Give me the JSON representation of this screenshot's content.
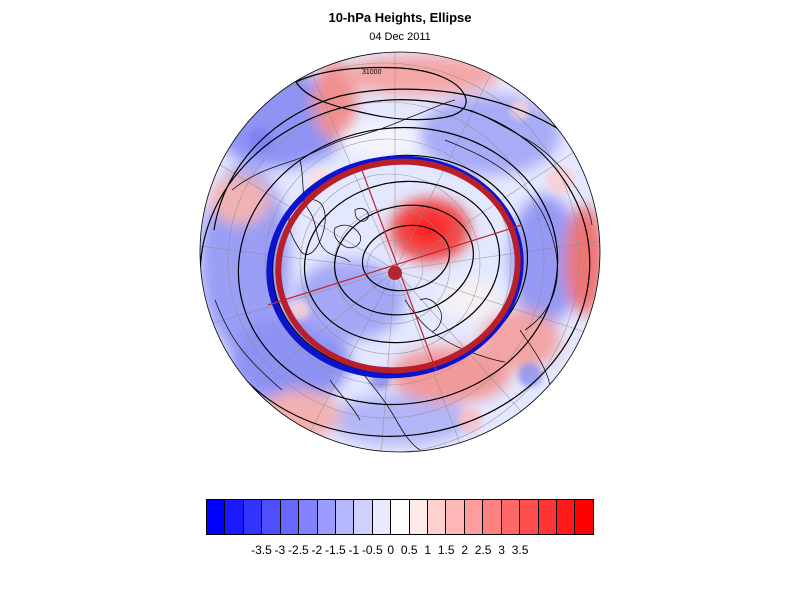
{
  "header": {
    "title": "10-hPa Heights, Ellipse",
    "date": "04 Dec 2011"
  },
  "map": {
    "projection": "north-polar-stereographic",
    "field": "height-anomaly",
    "contour_label": "31000",
    "ellipse": {
      "fit_color": "#b81f2a",
      "outer_color": "#0a13d0",
      "center_dot_color": "#b8242c"
    },
    "anomaly_regions": [
      {
        "sign": "positive",
        "strength": 3.2,
        "location": "north-central, near Siberia"
      },
      {
        "sign": "positive",
        "strength": 2.5,
        "location": "upper-left"
      },
      {
        "sign": "positive",
        "strength": 2.0,
        "location": "right edge"
      },
      {
        "sign": "positive",
        "strength": 1.8,
        "location": "lower-center"
      },
      {
        "sign": "negative",
        "strength": -2.5,
        "location": "left side"
      },
      {
        "sign": "negative",
        "strength": -2.0,
        "location": "lower-left"
      },
      {
        "sign": "negative",
        "strength": -1.8,
        "location": "top"
      },
      {
        "sign": "negative",
        "strength": -1.5,
        "location": "right"
      }
    ]
  },
  "colorbar": {
    "colors": [
      "#0000ff",
      "#1a1aff",
      "#3434ff",
      "#4e4eff",
      "#6868ff",
      "#8282ff",
      "#9c9cff",
      "#b6b6ff",
      "#d0d0ff",
      "#eaeaff",
      "#ffffff",
      "#ffeaea",
      "#ffd0d0",
      "#ffb6b6",
      "#ff9c9c",
      "#ff8282",
      "#ff6868",
      "#ff4e4e",
      "#ff3434",
      "#ff1a1a",
      "#ff0000"
    ],
    "tick_labels": [
      "-3.5",
      "-3",
      "-2.5",
      "-2",
      "-1.5",
      "-1",
      "-0.5",
      "0",
      "0.5",
      "1",
      "1.5",
      "2",
      "2.5",
      "3",
      "3.5"
    ]
  }
}
